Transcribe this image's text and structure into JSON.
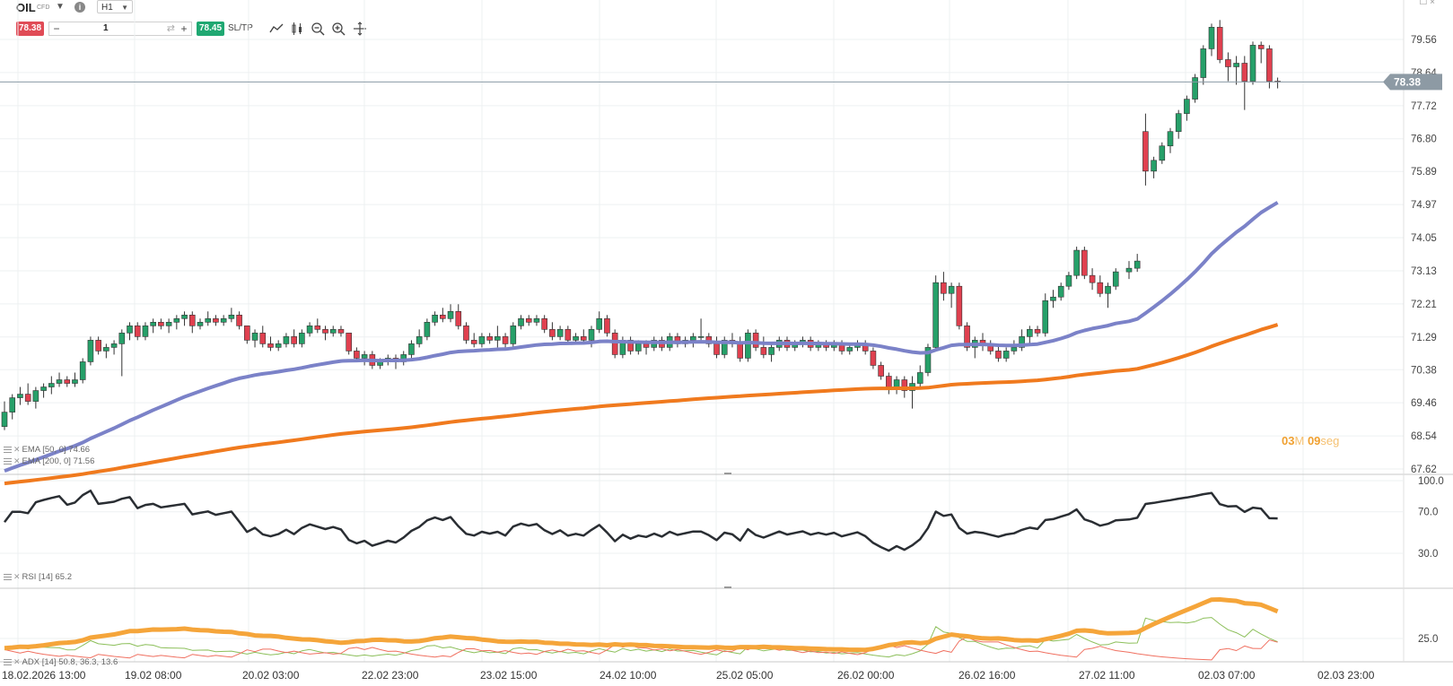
{
  "toolbar": {
    "symbol": "OIL",
    "symbol_type": "CFD",
    "timeframe": "H1",
    "sell_price": "78.38",
    "buy_price": "78.45",
    "quantity": "1",
    "sltp_label": "SL/TP",
    "tools": [
      "line-chart-icon",
      "candles-icon",
      "zoom-out-icon",
      "zoom-in-icon",
      "crosshair-icon"
    ]
  },
  "price_axis": {
    "labels": [
      "79.56",
      "78.64",
      "77.72",
      "76.80",
      "75.89",
      "74.97",
      "74.05",
      "73.13",
      "72.21",
      "71.29",
      "70.38",
      "69.46",
      "68.54",
      "67.62"
    ],
    "current_price": "78.38"
  },
  "time_axis": {
    "labels": [
      "18.02.2026 13:00",
      "19.02 08:00",
      "20.02 03:00",
      "22.02 23:00",
      "23.02 15:00",
      "24.02 10:00",
      "25.02 05:00",
      "26.02 00:00",
      "26.02 16:00",
      "27.02 11:00",
      "02.03 07:00",
      "02.03 23:00"
    ]
  },
  "rsi_axis": {
    "labels": [
      "100.0",
      "70.0",
      "30.0"
    ]
  },
  "adx_axis": {
    "labels": [
      "25.0"
    ]
  },
  "legends": {
    "ema50": "EMA [50, 0] 74.66",
    "ema200": "EMA [200, 0] 71.56",
    "rsi": "RSI [14] 65.2",
    "adx": "ADX [14] 50.8, 36.3, 13.6"
  },
  "timer": {
    "minutes": "03",
    "minutes_unit": "M",
    "seconds": "09",
    "seconds_unit": "seg"
  },
  "colors": {
    "up": "#26a069",
    "down": "#e0404f",
    "ema50": "#7b82c8",
    "ema200": "#f07a1e",
    "rsi": "#2a2e33",
    "adx": "#f5a53a",
    "di_plus": "#8cbf5a",
    "di_minus": "#f07060"
  },
  "chart_data": {
    "type": "candlestick",
    "price_range": [
      67.62,
      80.3
    ],
    "candles_ohlc": [
      [
        68.8,
        69.5,
        68.7,
        69.2
      ],
      [
        69.2,
        69.7,
        69.0,
        69.6
      ],
      [
        69.6,
        69.9,
        69.4,
        69.7
      ],
      [
        69.7,
        70.0,
        69.4,
        69.5
      ],
      [
        69.5,
        69.9,
        69.3,
        69.8
      ],
      [
        69.8,
        70.0,
        69.6,
        69.9
      ],
      [
        69.9,
        70.2,
        69.7,
        70.0
      ],
      [
        70.0,
        70.3,
        69.9,
        70.1
      ],
      [
        70.1,
        70.2,
        69.9,
        70.0
      ],
      [
        70.0,
        70.3,
        69.9,
        70.1
      ],
      [
        70.1,
        70.7,
        70.0,
        70.6
      ],
      [
        70.6,
        71.3,
        70.5,
        71.2
      ],
      [
        71.2,
        71.3,
        70.8,
        70.9
      ],
      [
        70.9,
        71.1,
        70.7,
        71.0
      ],
      [
        71.0,
        71.2,
        70.8,
        71.1
      ],
      [
        71.1,
        71.5,
        70.2,
        71.4
      ],
      [
        71.4,
        71.7,
        71.2,
        71.6
      ],
      [
        71.6,
        71.7,
        71.2,
        71.3
      ],
      [
        71.3,
        71.7,
        71.2,
        71.6
      ],
      [
        71.6,
        71.8,
        71.4,
        71.7
      ],
      [
        71.7,
        71.8,
        71.5,
        71.6
      ],
      [
        71.6,
        71.8,
        71.4,
        71.7
      ],
      [
        71.7,
        71.9,
        71.5,
        71.8
      ],
      [
        71.8,
        72.0,
        71.6,
        71.9
      ],
      [
        71.9,
        72.0,
        71.4,
        71.6
      ],
      [
        71.6,
        71.8,
        71.5,
        71.7
      ],
      [
        71.7,
        72.0,
        71.6,
        71.8
      ],
      [
        71.8,
        71.9,
        71.6,
        71.7
      ],
      [
        71.7,
        71.9,
        71.6,
        71.8
      ],
      [
        71.8,
        72.1,
        71.7,
        71.9
      ],
      [
        71.9,
        72.0,
        71.5,
        71.6
      ],
      [
        71.6,
        71.6,
        71.1,
        71.2
      ],
      [
        71.2,
        71.5,
        71.0,
        71.4
      ],
      [
        71.4,
        71.6,
        71.0,
        71.1
      ],
      [
        71.1,
        71.3,
        70.9,
        71.0
      ],
      [
        71.0,
        71.2,
        70.9,
        71.1
      ],
      [
        71.1,
        71.4,
        71.0,
        71.3
      ],
      [
        71.3,
        71.5,
        71.0,
        71.1
      ],
      [
        71.1,
        71.5,
        71.0,
        71.4
      ],
      [
        71.4,
        71.7,
        71.3,
        71.6
      ],
      [
        71.6,
        71.8,
        71.4,
        71.5
      ],
      [
        71.5,
        71.6,
        71.2,
        71.4
      ],
      [
        71.4,
        71.6,
        71.3,
        71.5
      ],
      [
        71.5,
        71.6,
        71.3,
        71.4
      ],
      [
        71.4,
        71.4,
        70.8,
        70.9
      ],
      [
        70.9,
        71.0,
        70.6,
        70.7
      ],
      [
        70.7,
        70.9,
        70.5,
        70.8
      ],
      [
        70.8,
        70.9,
        70.4,
        70.5
      ],
      [
        70.5,
        70.7,
        70.4,
        70.6
      ],
      [
        70.6,
        70.8,
        70.5,
        70.7
      ],
      [
        70.7,
        70.8,
        70.4,
        70.6
      ],
      [
        70.6,
        70.9,
        70.5,
        70.8
      ],
      [
        70.8,
        71.2,
        70.7,
        71.1
      ],
      [
        71.1,
        71.5,
        71.0,
        71.3
      ],
      [
        71.3,
        71.8,
        71.2,
        71.7
      ],
      [
        71.7,
        72.0,
        71.6,
        71.9
      ],
      [
        71.9,
        72.1,
        71.7,
        71.8
      ],
      [
        71.8,
        72.2,
        71.7,
        72.0
      ],
      [
        72.0,
        72.2,
        71.5,
        71.6
      ],
      [
        71.6,
        71.7,
        71.1,
        71.2
      ],
      [
        71.2,
        71.4,
        71.0,
        71.1
      ],
      [
        71.1,
        71.4,
        71.0,
        71.3
      ],
      [
        71.3,
        71.4,
        71.1,
        71.2
      ],
      [
        71.2,
        71.6,
        71.0,
        71.3
      ],
      [
        71.3,
        71.4,
        71.0,
        71.1
      ],
      [
        71.1,
        71.7,
        71.0,
        71.6
      ],
      [
        71.6,
        71.9,
        71.5,
        71.8
      ],
      [
        71.8,
        71.9,
        71.6,
        71.7
      ],
      [
        71.7,
        71.9,
        71.6,
        71.8
      ],
      [
        71.8,
        71.9,
        71.4,
        71.5
      ],
      [
        71.5,
        71.7,
        71.2,
        71.3
      ],
      [
        71.3,
        71.6,
        71.2,
        71.5
      ],
      [
        71.5,
        71.6,
        71.1,
        71.2
      ],
      [
        71.2,
        71.4,
        71.1,
        71.3
      ],
      [
        71.3,
        71.5,
        71.1,
        71.2
      ],
      [
        71.2,
        71.6,
        71.0,
        71.5
      ],
      [
        71.5,
        72.0,
        71.4,
        71.8
      ],
      [
        71.8,
        71.9,
        71.3,
        71.4
      ],
      [
        71.4,
        71.5,
        70.7,
        70.8
      ],
      [
        70.8,
        71.3,
        70.7,
        71.2
      ],
      [
        71.2,
        71.3,
        70.8,
        70.9
      ],
      [
        70.9,
        71.2,
        70.8,
        71.1
      ],
      [
        71.1,
        71.2,
        70.8,
        71.0
      ],
      [
        71.0,
        71.3,
        70.9,
        71.2
      ],
      [
        71.2,
        71.3,
        70.9,
        71.0
      ],
      [
        71.0,
        71.4,
        70.9,
        71.3
      ],
      [
        71.3,
        71.4,
        71.0,
        71.1
      ],
      [
        71.1,
        71.3,
        71.0,
        71.2
      ],
      [
        71.2,
        71.4,
        71.0,
        71.3
      ],
      [
        71.3,
        71.8,
        71.2,
        71.3
      ],
      [
        71.3,
        71.4,
        71.0,
        71.1
      ],
      [
        71.1,
        71.3,
        70.7,
        70.8
      ],
      [
        70.8,
        71.3,
        70.7,
        71.2
      ],
      [
        71.2,
        71.4,
        71.0,
        71.1
      ],
      [
        71.1,
        71.3,
        70.6,
        70.7
      ],
      [
        70.7,
        71.5,
        70.6,
        71.4
      ],
      [
        71.4,
        71.5,
        70.9,
        71.0
      ],
      [
        71.0,
        71.3,
        70.7,
        70.8
      ],
      [
        70.8,
        71.1,
        70.6,
        71.0
      ],
      [
        71.0,
        71.3,
        70.9,
        71.2
      ],
      [
        71.2,
        71.3,
        70.9,
        71.0
      ],
      [
        71.0,
        71.2,
        70.9,
        71.1
      ],
      [
        71.1,
        71.3,
        71.0,
        71.2
      ],
      [
        71.2,
        71.3,
        70.9,
        71.0
      ],
      [
        71.0,
        71.2,
        70.9,
        71.1
      ],
      [
        71.1,
        71.2,
        70.9,
        71.0
      ],
      [
        71.0,
        71.2,
        70.9,
        71.1
      ],
      [
        71.1,
        71.2,
        70.8,
        70.9
      ],
      [
        70.9,
        71.1,
        70.8,
        71.0
      ],
      [
        71.0,
        71.2,
        70.9,
        71.1
      ],
      [
        71.1,
        71.2,
        70.8,
        70.9
      ],
      [
        70.9,
        71.0,
        70.4,
        70.5
      ],
      [
        70.5,
        70.6,
        70.1,
        70.2
      ],
      [
        70.2,
        70.3,
        69.7,
        69.9
      ],
      [
        69.9,
        70.2,
        69.7,
        70.1
      ],
      [
        70.1,
        70.2,
        69.6,
        69.8
      ],
      [
        69.8,
        70.2,
        69.3,
        70.0
      ],
      [
        70.0,
        70.5,
        69.9,
        70.3
      ],
      [
        70.3,
        71.1,
        70.2,
        71.0
      ],
      [
        71.0,
        73.0,
        70.9,
        72.8
      ],
      [
        72.8,
        73.1,
        72.3,
        72.5
      ],
      [
        72.5,
        72.8,
        72.1,
        72.7
      ],
      [
        72.7,
        72.8,
        71.5,
        71.6
      ],
      [
        71.6,
        71.7,
        70.9,
        71.0
      ],
      [
        71.0,
        71.3,
        70.7,
        71.2
      ],
      [
        71.2,
        71.4,
        70.9,
        71.1
      ],
      [
        71.1,
        71.2,
        70.8,
        70.9
      ],
      [
        70.9,
        71.1,
        70.6,
        70.7
      ],
      [
        70.7,
        71.0,
        70.6,
        70.9
      ],
      [
        70.9,
        71.2,
        70.8,
        71.0
      ],
      [
        71.0,
        71.5,
        70.9,
        71.3
      ],
      [
        71.3,
        71.6,
        71.1,
        71.5
      ],
      [
        71.5,
        71.6,
        71.3,
        71.4
      ],
      [
        71.4,
        72.5,
        71.3,
        72.3
      ],
      [
        72.3,
        72.6,
        72.1,
        72.4
      ],
      [
        72.4,
        72.8,
        72.3,
        72.7
      ],
      [
        72.7,
        73.1,
        72.6,
        73.0
      ],
      [
        73.0,
        73.8,
        72.9,
        73.7
      ],
      [
        73.7,
        73.8,
        72.9,
        73.0
      ],
      [
        73.0,
        73.2,
        72.6,
        72.8
      ],
      [
        72.8,
        73.0,
        72.4,
        72.5
      ],
      [
        72.5,
        72.8,
        72.1,
        72.7
      ],
      [
        72.7,
        73.2,
        72.6,
        73.1
      ],
      [
        73.1,
        73.4,
        72.9,
        73.2
      ],
      [
        73.2,
        73.6,
        73.1,
        73.4
      ],
      [
        77.0,
        77.5,
        75.5,
        75.9
      ],
      [
        75.9,
        76.3,
        75.7,
        76.2
      ],
      [
        76.2,
        76.7,
        76.1,
        76.6
      ],
      [
        76.6,
        77.1,
        76.4,
        77.0
      ],
      [
        77.0,
        77.6,
        76.8,
        77.5
      ],
      [
        77.5,
        78.0,
        77.3,
        77.9
      ],
      [
        77.9,
        78.6,
        77.8,
        78.5
      ],
      [
        78.5,
        79.4,
        78.3,
        79.3
      ],
      [
        79.3,
        80.0,
        79.1,
        79.9
      ],
      [
        79.9,
        80.1,
        78.9,
        79.0
      ],
      [
        79.0,
        79.2,
        78.4,
        78.8
      ],
      [
        78.8,
        79.1,
        78.3,
        78.9
      ],
      [
        78.9,
        79.1,
        77.6,
        78.4
      ],
      [
        78.4,
        79.5,
        78.3,
        79.4
      ],
      [
        79.4,
        79.5,
        78.9,
        79.3
      ],
      [
        79.3,
        79.4,
        78.2,
        78.4
      ],
      [
        78.4,
        78.5,
        78.2,
        78.38
      ]
    ],
    "ema50_end": 74.66,
    "ema200_end": 71.56,
    "rsi_end": 65.2,
    "adx_end": [
      50.8,
      36.3,
      13.6
    ]
  }
}
